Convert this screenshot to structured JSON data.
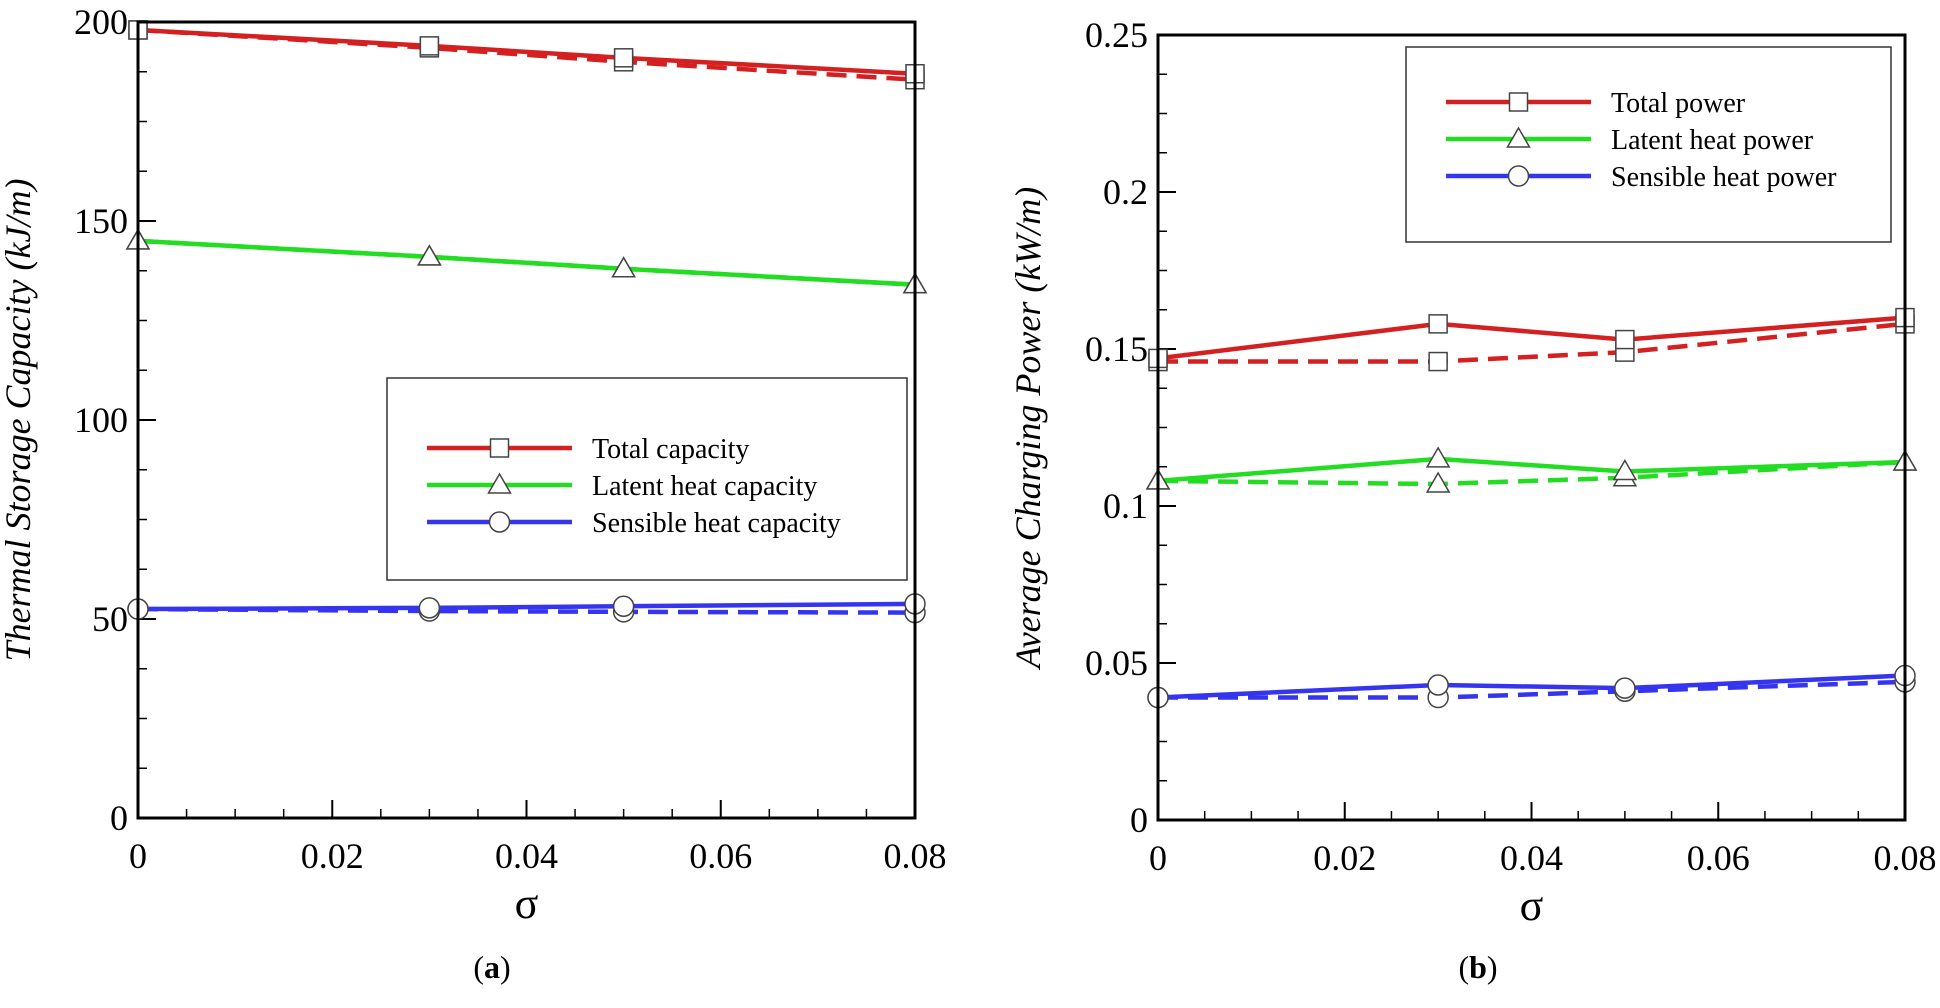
{
  "chart_data": [
    {
      "type": "line",
      "panel_label": "a",
      "title": "",
      "xlabel": "σ",
      "ylabel": "Thermal Storage Capacity (kJ/m)",
      "xlim": [
        0,
        0.08
      ],
      "ylim": [
        0,
        200
      ],
      "x_ticks": [
        0,
        0.02,
        0.04,
        0.06,
        0.08
      ],
      "x_tick_labels": [
        "0",
        "0.02",
        "0.04",
        "0.06",
        "0.08"
      ],
      "y_ticks": [
        0,
        50,
        100,
        150,
        200
      ],
      "y_tick_labels": [
        "0",
        "50",
        "100",
        "150",
        "200"
      ],
      "legend_position": "center-right",
      "x": [
        0,
        0.03,
        0.05,
        0.08
      ],
      "series": [
        {
          "name": "Total capacity",
          "color": "#d42020",
          "marker": "square",
          "values": [
            198,
            194,
            191,
            187
          ],
          "dashed_values": [
            198,
            193.5,
            190,
            185.5
          ]
        },
        {
          "name": "Latent heat capacity",
          "color": "#22dd22",
          "marker": "triangle",
          "values": [
            145,
            141,
            138,
            134
          ],
          "dashed_values": [
            145,
            141,
            138,
            134
          ]
        },
        {
          "name": "Sensible heat capacity",
          "color": "#3535f0",
          "marker": "circle",
          "values": [
            52.5,
            52.8,
            53.2,
            53.8
          ],
          "dashed_values": [
            52.5,
            52,
            51.8,
            51.6
          ]
        }
      ]
    },
    {
      "type": "line",
      "panel_label": "b",
      "title": "",
      "xlabel": "σ",
      "ylabel": "Average Charging Power (kW/m)",
      "xlim": [
        0,
        0.08
      ],
      "ylim": [
        0,
        0.25
      ],
      "x_ticks": [
        0,
        0.02,
        0.04,
        0.06,
        0.08
      ],
      "x_tick_labels": [
        "0",
        "0.02",
        "0.04",
        "0.06",
        "0.08"
      ],
      "y_ticks": [
        0,
        0.05,
        0.1,
        0.15,
        0.2,
        0.25
      ],
      "y_tick_labels": [
        "0",
        "0.05",
        "0.1",
        "0.15",
        "0.2",
        "0.25"
      ],
      "legend_position": "top-right",
      "x": [
        0,
        0.03,
        0.05,
        0.08
      ],
      "series": [
        {
          "name": "Total power",
          "color": "#d42020",
          "marker": "square",
          "values": [
            0.147,
            0.158,
            0.153,
            0.16
          ],
          "dashed_values": [
            0.146,
            0.146,
            0.149,
            0.158
          ]
        },
        {
          "name": "Latent heat power",
          "color": "#22dd22",
          "marker": "triangle",
          "values": [
            0.108,
            0.115,
            0.111,
            0.114
          ],
          "dashed_values": [
            0.108,
            0.107,
            0.109,
            0.114
          ]
        },
        {
          "name": "Sensible heat power",
          "color": "#3535f0",
          "marker": "circle",
          "values": [
            0.039,
            0.043,
            0.042,
            0.046
          ],
          "dashed_values": [
            0.039,
            0.039,
            0.041,
            0.044
          ]
        }
      ]
    }
  ]
}
